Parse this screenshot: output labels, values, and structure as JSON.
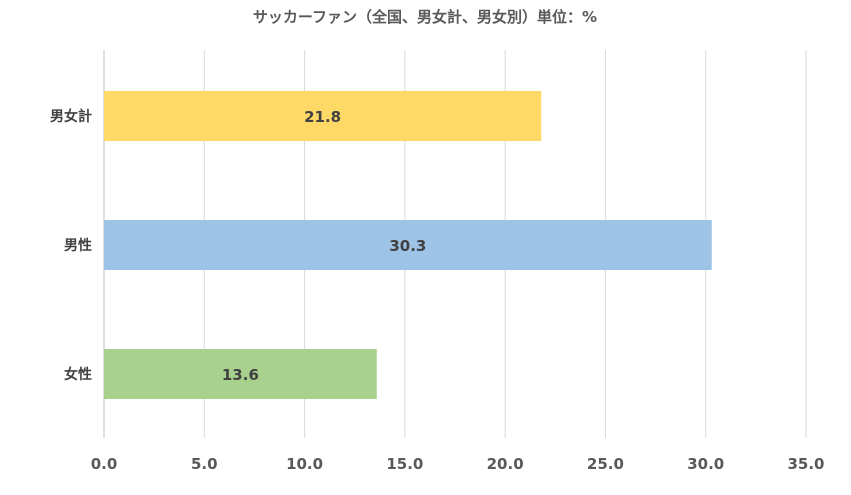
{
  "chart_data": {
    "type": "bar",
    "orientation": "horizontal",
    "title": "サッカーファン（全国、男女計、男女別）単位：%",
    "categories": [
      "男女計",
      "男性",
      "女性"
    ],
    "values": [
      21.8,
      30.3,
      13.6
    ],
    "value_labels": [
      "21.8",
      "30.3",
      "13.6"
    ],
    "colors": [
      "#FFD966",
      "#9DC3E6",
      "#A9D18E"
    ],
    "xlim": [
      0,
      35
    ],
    "x_ticks": [
      0,
      5,
      10,
      15,
      20,
      25,
      30,
      35
    ],
    "x_tick_labels": [
      "0.0",
      "5.0",
      "10.0",
      "15.0",
      "20.0",
      "25.0",
      "30.0",
      "35.0"
    ],
    "xlabel": "",
    "ylabel": "",
    "grid": true,
    "legend": "none"
  }
}
